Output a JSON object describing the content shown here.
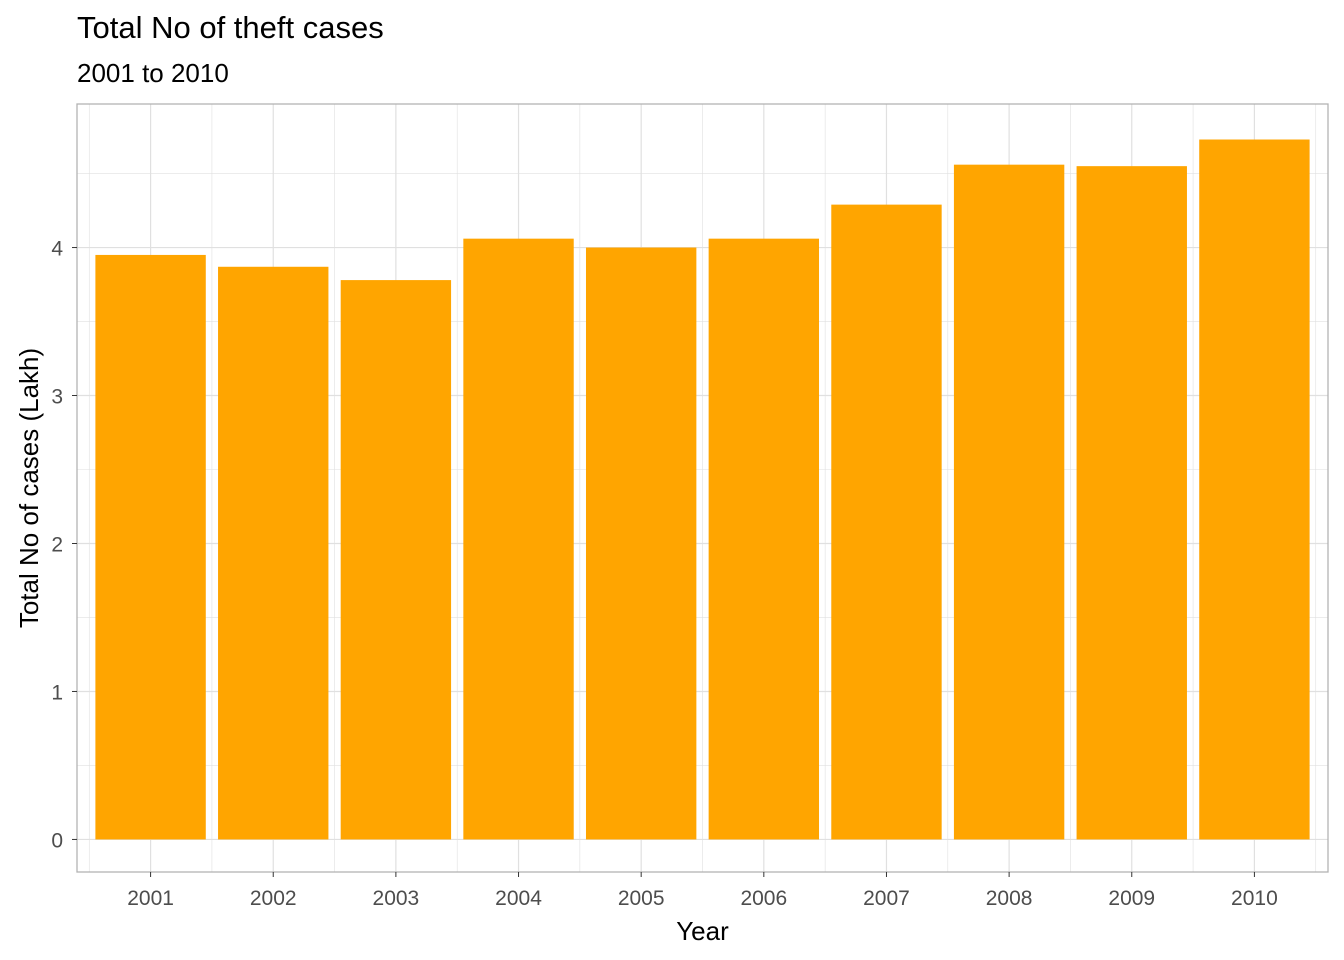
{
  "chart_data": {
    "type": "bar",
    "title": "Total No of theft cases",
    "subtitle": "2001 to 2010",
    "xlabel": "Year",
    "ylabel": "Total No of cases (Lakh)",
    "categories": [
      "2001",
      "2002",
      "2003",
      "2004",
      "2005",
      "2006",
      "2007",
      "2008",
      "2009",
      "2010"
    ],
    "values": [
      3.95,
      3.87,
      3.78,
      4.06,
      4.0,
      4.06,
      4.29,
      4.56,
      4.55,
      4.73
    ],
    "ylim": [
      -0.22,
      4.97
    ],
    "yticks": [
      "0",
      "1",
      "2",
      "3",
      "4"
    ],
    "grid": true,
    "bar_color": "#FFA500",
    "grid_color": "#E0E0E0",
    "panel_border_color": "#B3B3B3"
  }
}
